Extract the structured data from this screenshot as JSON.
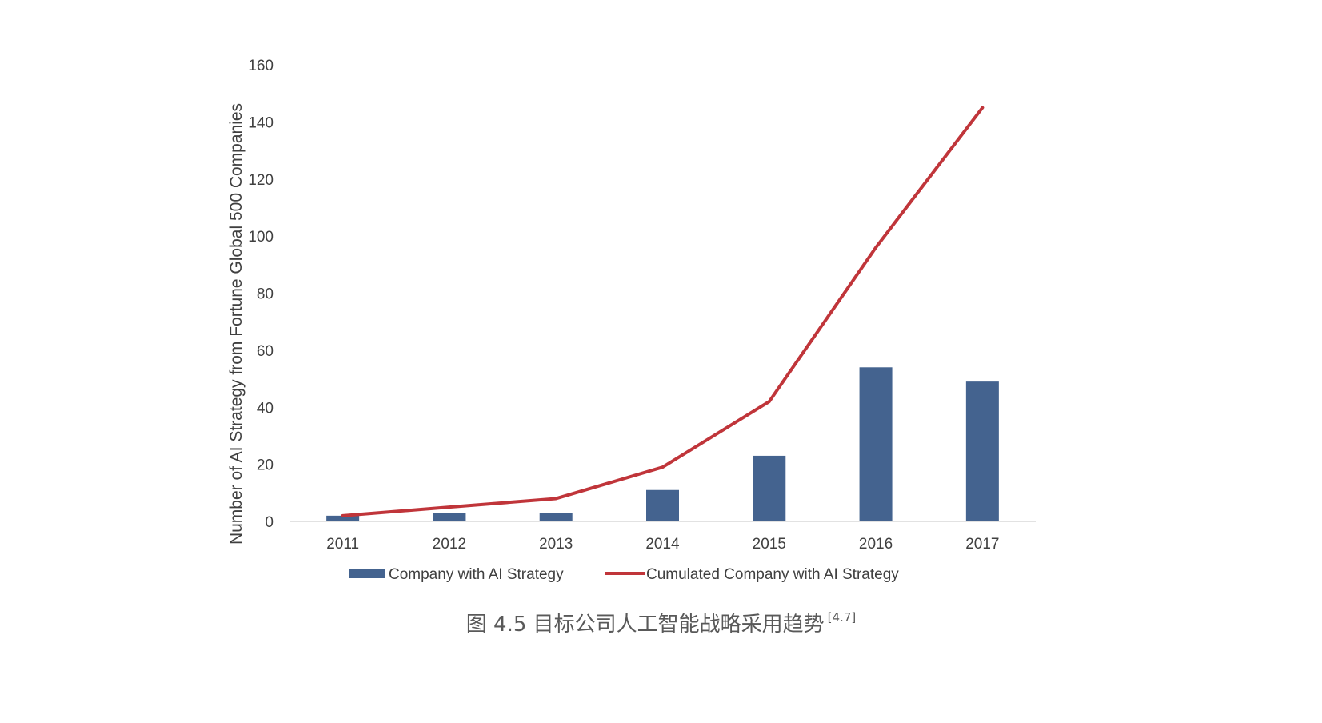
{
  "chart_data": {
    "type": "bar",
    "categories": [
      "2011",
      "2012",
      "2013",
      "2014",
      "2015",
      "2016",
      "2017"
    ],
    "series": [
      {
        "name": "Company with AI Strategy",
        "kind": "bar",
        "color": "#44638f",
        "values": [
          2,
          3,
          3,
          11,
          23,
          54,
          49
        ]
      },
      {
        "name": "Cumulated Company with AI Strategy",
        "kind": "line",
        "color": "#c0353a",
        "values": [
          2,
          5,
          8,
          19,
          42,
          96,
          145
        ]
      }
    ],
    "xlabel": "",
    "ylabel": "Number of AI Strategy from Fortune Global 500 Companies",
    "ylim": [
      0,
      160
    ],
    "yticks": [
      0,
      20,
      40,
      60,
      80,
      100,
      120,
      140,
      160
    ],
    "grid": false,
    "legend": "bottom"
  },
  "caption": {
    "text": "图 4.5 目标公司人工智能战略采用趋势",
    "ref": "[4.7]"
  }
}
